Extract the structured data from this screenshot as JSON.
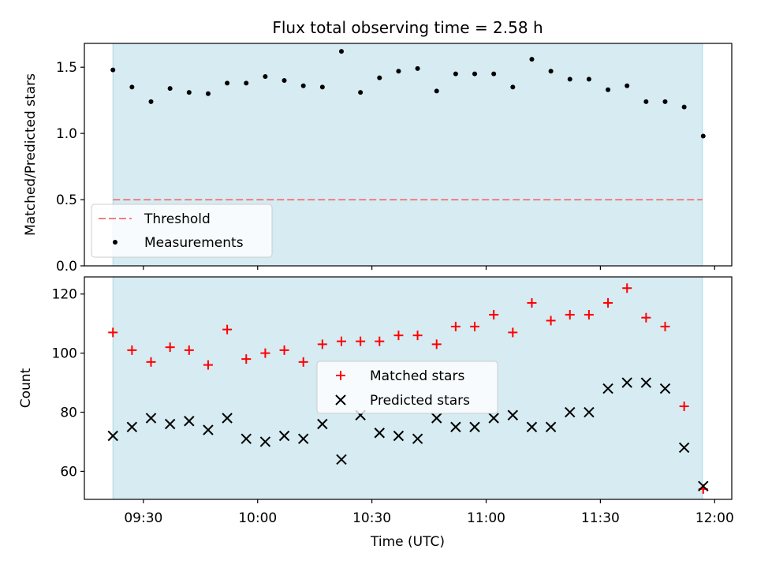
{
  "title": "Flux total observing time = 2.58 h",
  "chart_data": [
    {
      "type": "scatter",
      "ylabel": "Matched/Predicted stars",
      "xlabel": "",
      "ylim": [
        0,
        1.68
      ],
      "yticks": [
        0.0,
        0.5,
        1.0,
        1.5
      ],
      "ytick_labels": [
        "0.0",
        "0.5",
        "1.0",
        "1.5"
      ],
      "observing_window": {
        "start_min": 562,
        "end_min": 716.8,
        "color": "#add8e6"
      },
      "threshold": {
        "name": "Threshold",
        "value": 0.5,
        "color": "#f08080"
      },
      "legend": {
        "position": "lower-left",
        "entries": [
          "Threshold",
          "Measurements"
        ]
      },
      "series": [
        {
          "name": "Measurements",
          "marker": "dot",
          "color": "#000000",
          "x_min": [
            562,
            567,
            572,
            577,
            582,
            587,
            592,
            597,
            602,
            607,
            612,
            617,
            622,
            627,
            632,
            637,
            642,
            647,
            652,
            657,
            662,
            667,
            672,
            677,
            682,
            687,
            692,
            697,
            702,
            707,
            712,
            717
          ],
          "y": [
            1.48,
            1.35,
            1.24,
            1.34,
            1.31,
            1.3,
            1.38,
            1.38,
            1.43,
            1.4,
            1.36,
            1.35,
            1.62,
            1.31,
            1.42,
            1.47,
            1.49,
            1.32,
            1.45,
            1.45,
            1.45,
            1.35,
            1.56,
            1.47,
            1.41,
            1.41,
            1.33,
            1.36,
            1.24,
            1.24,
            1.2,
            0.98
          ]
        }
      ]
    },
    {
      "type": "scatter",
      "ylabel": "Count",
      "xlabel": "Time (UTC)",
      "xlim_min": [
        554.5,
        724.5
      ],
      "xticks_min": [
        570,
        600,
        630,
        660,
        690,
        720
      ],
      "xtick_labels": [
        "09:30",
        "10:00",
        "10:30",
        "11:00",
        "11:30",
        "12:00"
      ],
      "ylim": [
        50.5,
        125.8
      ],
      "yticks": [
        60,
        80,
        100,
        120
      ],
      "ytick_labels": [
        "60",
        "80",
        "100",
        "120"
      ],
      "observing_window": {
        "start_min": 562,
        "end_min": 716.8,
        "color": "#add8e6"
      },
      "legend": {
        "position": "center",
        "entries": [
          "Matched stars",
          "Predicted stars"
        ]
      },
      "series": [
        {
          "name": "Matched stars",
          "marker": "plus",
          "color": "#ff0000",
          "x_min": [
            562,
            567,
            572,
            577,
            582,
            587,
            592,
            597,
            602,
            607,
            612,
            617,
            622,
            627,
            632,
            637,
            642,
            647,
            652,
            657,
            662,
            667,
            672,
            677,
            682,
            687,
            692,
            697,
            702,
            707,
            712,
            717
          ],
          "y": [
            107,
            101,
            97,
            102,
            101,
            96,
            108,
            98,
            100,
            101,
            97,
            103,
            104,
            104,
            104,
            106,
            106,
            103,
            109,
            109,
            113,
            107,
            117,
            111,
            113,
            113,
            117,
            122,
            112,
            109,
            82,
            54
          ]
        },
        {
          "name": "Predicted stars",
          "marker": "x",
          "color": "#000000",
          "x_min": [
            562,
            567,
            572,
            577,
            582,
            587,
            592,
            597,
            602,
            607,
            612,
            617,
            622,
            627,
            632,
            637,
            642,
            647,
            652,
            657,
            662,
            667,
            672,
            677,
            682,
            687,
            692,
            697,
            702,
            707,
            712,
            717
          ],
          "y": [
            72,
            75,
            78,
            76,
            77,
            74,
            78,
            71,
            70,
            72,
            71,
            76,
            64,
            79,
            73,
            72,
            71,
            78,
            75,
            75,
            78,
            79,
            75,
            75,
            80,
            80,
            88,
            90,
            90,
            88,
            68,
            55
          ]
        }
      ]
    }
  ]
}
